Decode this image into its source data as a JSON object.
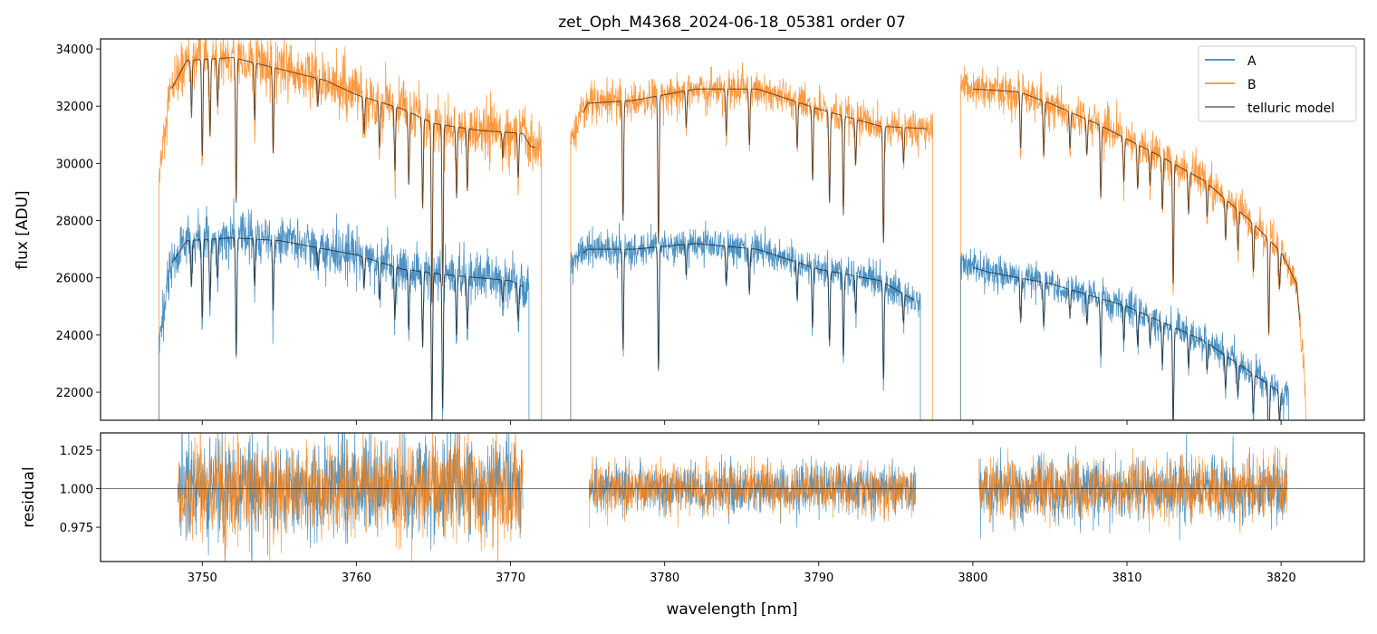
{
  "chart_data": {
    "type": "line",
    "title": "zet_Oph_M4368_2024-06-18_05381  order 07",
    "xlabel": "wavelength [nm]",
    "xlim": [
      3743.4,
      3825.4
    ],
    "xticks": [
      3750,
      3760,
      3770,
      3780,
      3790,
      3800,
      3810,
      3820
    ],
    "colors": {
      "A": "#1f77b4",
      "B": "#ff7f0e",
      "model": "#000000"
    },
    "legend": {
      "placement": "top-right",
      "entries": [
        "A",
        "B",
        "telluric model"
      ]
    },
    "top_panel": {
      "ylabel": "flux [ADU]",
      "ylim": [
        21020,
        34350
      ],
      "yticks": [
        22000,
        24000,
        26000,
        28000,
        30000,
        32000,
        34000
      ],
      "edge_value": 15000,
      "series": [
        {
          "name": "B",
          "noise_sigma": 380,
          "segments": [
            {
              "range": [
                3747.2,
                3772.0
              ],
              "continuum": [
                [
                  3747.2,
                  29500
                ],
                [
                  3748,
                  32600
                ],
                [
                  3749,
                  33600
                ],
                [
                  3752,
                  33700
                ],
                [
                  3755,
                  33300
                ],
                [
                  3758,
                  32900
                ],
                [
                  3760,
                  32400
                ],
                [
                  3763,
                  31900
                ],
                [
                  3765,
                  31400
                ],
                [
                  3768,
                  31150
                ],
                [
                  3770.8,
                  31050
                ],
                [
                  3771.3,
                  30600
                ],
                [
                  3772.0,
                  30500
                ]
              ]
            },
            {
              "range": [
                3773.9,
                3797.4
              ],
              "continuum": [
                [
                  3773.9,
                  30800
                ],
                [
                  3775,
                  32100
                ],
                [
                  3778,
                  32200
                ],
                [
                  3782,
                  32600
                ],
                [
                  3786,
                  32600
                ],
                [
                  3790,
                  31900
                ],
                [
                  3794,
                  31300
                ],
                [
                  3797.4,
                  31200
                ]
              ]
            },
            {
              "range": [
                3799.2,
                3821.6
              ],
              "continuum": [
                [
                  3799.2,
                  32900
                ],
                [
                  3800,
                  32600
                ],
                [
                  3803,
                  32500
                ],
                [
                  3805,
                  32100
                ],
                [
                  3808,
                  31400
                ],
                [
                  3812,
                  30300
                ],
                [
                  3815,
                  29400
                ],
                [
                  3818,
                  28000
                ],
                [
                  3820,
                  26900
                ],
                [
                  3821,
                  25800
                ],
                [
                  3821.6,
                  22000
                ]
              ]
            }
          ]
        },
        {
          "name": "A",
          "noise_sigma": 330,
          "segments": [
            {
              "range": [
                3747.2,
                3771.2
              ],
              "continuum": [
                [
                  3747.2,
                  23600
                ],
                [
                  3748,
                  26500
                ],
                [
                  3749,
                  27300
                ],
                [
                  3752,
                  27400
                ],
                [
                  3755,
                  27300
                ],
                [
                  3758,
                  27000
                ],
                [
                  3760,
                  26800
                ],
                [
                  3763,
                  26300
                ],
                [
                  3766,
                  26100
                ],
                [
                  3770,
                  25900
                ],
                [
                  3771.2,
                  25600
                ]
              ]
            },
            {
              "range": [
                3773.9,
                3796.6
              ],
              "continuum": [
                [
                  3773.9,
                  26500
                ],
                [
                  3775,
                  27000
                ],
                [
                  3778,
                  27000
                ],
                [
                  3782,
                  27200
                ],
                [
                  3786,
                  27000
                ],
                [
                  3790,
                  26300
                ],
                [
                  3794,
                  25900
                ],
                [
                  3796.6,
                  25100
                ]
              ]
            },
            {
              "range": [
                3799.2,
                3820.5
              ],
              "continuum": [
                [
                  3799.2,
                  26500
                ],
                [
                  3801,
                  26200
                ],
                [
                  3805,
                  25800
                ],
                [
                  3810,
                  25000
                ],
                [
                  3815,
                  23800
                ],
                [
                  3818,
                  22700
                ],
                [
                  3820.5,
                  21800
                ]
              ]
            }
          ]
        }
      ],
      "telluric_lines": [
        [
          3749.3,
          0.06
        ],
        [
          3750.0,
          0.1
        ],
        [
          3750.5,
          0.08
        ],
        [
          3751.0,
          0.05
        ],
        [
          3752.2,
          0.15
        ],
        [
          3753.4,
          0.06
        ],
        [
          3754.6,
          0.09
        ],
        [
          3757.5,
          0.03
        ],
        [
          3760.5,
          0.04
        ],
        [
          3761.5,
          0.05
        ],
        [
          3762.5,
          0.07
        ],
        [
          3763.4,
          0.08
        ],
        [
          3764.3,
          0.1
        ],
        [
          3764.9,
          0.2
        ],
        [
          3765.6,
          0.18
        ],
        [
          3766.5,
          0.08
        ],
        [
          3767.2,
          0.07
        ],
        [
          3769.5,
          0.03
        ],
        [
          3770.5,
          0.05
        ],
        [
          3777.3,
          0.13
        ],
        [
          3779.6,
          0.16
        ],
        [
          3781.4,
          0.04
        ],
        [
          3784.0,
          0.05
        ],
        [
          3785.5,
          0.06
        ],
        [
          3788.6,
          0.05
        ],
        [
          3789.6,
          0.08
        ],
        [
          3790.7,
          0.1
        ],
        [
          3791.6,
          0.11
        ],
        [
          3792.4,
          0.05
        ],
        [
          3794.2,
          0.13
        ],
        [
          3795.5,
          0.04
        ],
        [
          3803.1,
          0.06
        ],
        [
          3804.6,
          0.06
        ],
        [
          3806.3,
          0.04
        ],
        [
          3807.4,
          0.04
        ],
        [
          3808.3,
          0.08
        ],
        [
          3809.8,
          0.05
        ],
        [
          3810.7,
          0.05
        ],
        [
          3811.5,
          0.04
        ],
        [
          3812.3,
          0.06
        ],
        [
          3813.0,
          0.14
        ],
        [
          3814.0,
          0.05
        ],
        [
          3815.2,
          0.04
        ],
        [
          3816.4,
          0.05
        ],
        [
          3817.2,
          0.05
        ],
        [
          3818.2,
          0.06
        ],
        [
          3819.2,
          0.12
        ],
        [
          3819.9,
          0.05
        ]
      ]
    },
    "bottom_panel": {
      "ylabel": "residual",
      "ylim": [
        0.9527,
        1.0362
      ],
      "yticks": [
        0.975,
        1.0,
        1.025
      ],
      "ytick_labels": [
        "0.975",
        "1.000",
        "1.025"
      ],
      "reference_line": 1.0,
      "segments": [
        {
          "range": [
            3748.4,
            3770.8
          ],
          "noise_sigma": 0.016
        },
        {
          "range": [
            3775.1,
            3796.3
          ],
          "noise_sigma": 0.008
        },
        {
          "range": [
            3800.4,
            3820.4
          ],
          "noise_sigma": 0.01
        }
      ]
    }
  }
}
